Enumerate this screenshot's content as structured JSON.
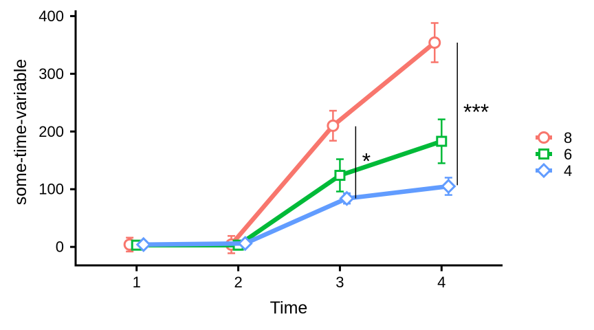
{
  "figure": {
    "background": "#ffffff",
    "axis_color": "#000000",
    "text_color": "#000000"
  },
  "chart_data": {
    "type": "line",
    "title": "",
    "xlabel": "Time",
    "ylabel": "some-time-variable",
    "x": [
      1,
      2,
      3,
      4
    ],
    "xticks": [
      1,
      2,
      3,
      4
    ],
    "yticks": [
      0,
      100,
      200,
      300,
      400
    ],
    "xlim": [
      0.4,
      4.6
    ],
    "ylim": [
      -32,
      410
    ],
    "grid": false,
    "legend_position": "right",
    "markers_filled_white": true,
    "series": [
      {
        "name": "8",
        "marker": "circle",
        "color": "#F8766D",
        "values": [
          4,
          4,
          210,
          354
        ],
        "errors": [
          12,
          15,
          26,
          34
        ],
        "dodge": -0.068
      },
      {
        "name": "6",
        "marker": "square",
        "color": "#00BA38",
        "values": [
          3,
          3,
          124,
          183
        ],
        "errors": [
          5,
          8,
          28,
          38
        ],
        "dodge": 0
      },
      {
        "name": "4",
        "marker": "diamond",
        "color": "#619CFF",
        "values": [
          4,
          6,
          84,
          105
        ],
        "errors": [
          3,
          3,
          9,
          15
        ],
        "dodge": 0.068
      }
    ],
    "annotations": [
      {
        "x": 3.155,
        "y_from": 209,
        "y_to": 84,
        "label": "*",
        "label_x": 3.26,
        "label_y": 155
      },
      {
        "x": 4.155,
        "y_from": 354,
        "y_to": 107,
        "label": "***",
        "label_x": 4.34,
        "label_y": 240
      }
    ]
  }
}
